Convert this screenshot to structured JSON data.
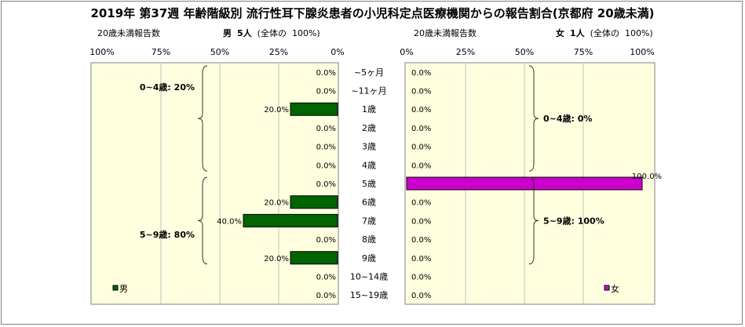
{
  "title": "2019年 第37週 年齢階級別 流行性耳下腺炎患者の小児科定点医療機関からの報告割合(京都府 20歳未満)",
  "male_header": {
    "report_label": "20歳未満報告数",
    "sex_label": "男",
    "count": "5人",
    "total_label": "(全体の",
    "total_pct": "100%)"
  },
  "female_header": {
    "report_label": "20歳未満報告数",
    "sex_label": "女",
    "count": "1人",
    "total_label": "(全体の",
    "total_pct": "100%)"
  },
  "colors": {
    "male": "#006400",
    "female": "#cc00cc",
    "plot_bg": "#ffffe0",
    "grid": "#c0c0c0"
  },
  "chart_data": [
    {
      "type": "bar",
      "orientation": "horizontal",
      "direction": "right-to-left",
      "categories": [
        "~5ヶ月",
        "~11ヶ月",
        "1歳",
        "2歳",
        "3歳",
        "4歳",
        "5歳",
        "6歳",
        "7歳",
        "8歳",
        "9歳",
        "10~14歳",
        "15~19歳"
      ],
      "series": [
        {
          "name": "男",
          "values": [
            0.0,
            0.0,
            20.0,
            0.0,
            0.0,
            0.0,
            0.0,
            20.0,
            40.0,
            0.0,
            20.0,
            0.0,
            0.0
          ],
          "color": "#006400"
        }
      ],
      "value_labels": [
        "0.0%",
        "0.0%",
        "20.0%",
        "0.0%",
        "0.0%",
        "0.0%",
        "0.0%",
        "20.0%",
        "40.0%",
        "0.0%",
        "20.0%",
        "0.0%",
        "0.0%"
      ],
      "x_ticks": [
        "100%",
        "75%",
        "50%",
        "25%",
        "0%"
      ],
      "xlim": [
        0,
        100
      ],
      "groups": [
        {
          "label": "0~4歳: 20%",
          "from": 0,
          "to": 5
        },
        {
          "label": "5~9歳: 80%",
          "from": 6,
          "to": 10
        }
      ],
      "legend": "bottom-left"
    },
    {
      "type": "bar",
      "orientation": "horizontal",
      "direction": "left-to-right",
      "categories": [
        "~5ヶ月",
        "~11ヶ月",
        "1歳",
        "2歳",
        "3歳",
        "4歳",
        "5歳",
        "6歳",
        "7歳",
        "8歳",
        "9歳",
        "10~14歳",
        "15~19歳"
      ],
      "series": [
        {
          "name": "女",
          "values": [
            0.0,
            0.0,
            0.0,
            0.0,
            0.0,
            0.0,
            100.0,
            0.0,
            0.0,
            0.0,
            0.0,
            0.0,
            0.0
          ],
          "color": "#cc00cc"
        }
      ],
      "value_labels": [
        "0.0%",
        "0.0%",
        "0.0%",
        "0.0%",
        "0.0%",
        "0.0%",
        "100.0%",
        "0.0%",
        "0.0%",
        "0.0%",
        "0.0%",
        "0.0%",
        "0.0%"
      ],
      "x_ticks": [
        "0%",
        "25%",
        "50%",
        "75%",
        "100%"
      ],
      "xlim": [
        0,
        100
      ],
      "groups": [
        {
          "label": "0~4歳: 0%",
          "from": 0,
          "to": 5
        },
        {
          "label": "5~9歳: 100%",
          "from": 6,
          "to": 10
        }
      ],
      "legend": "bottom-right"
    }
  ]
}
